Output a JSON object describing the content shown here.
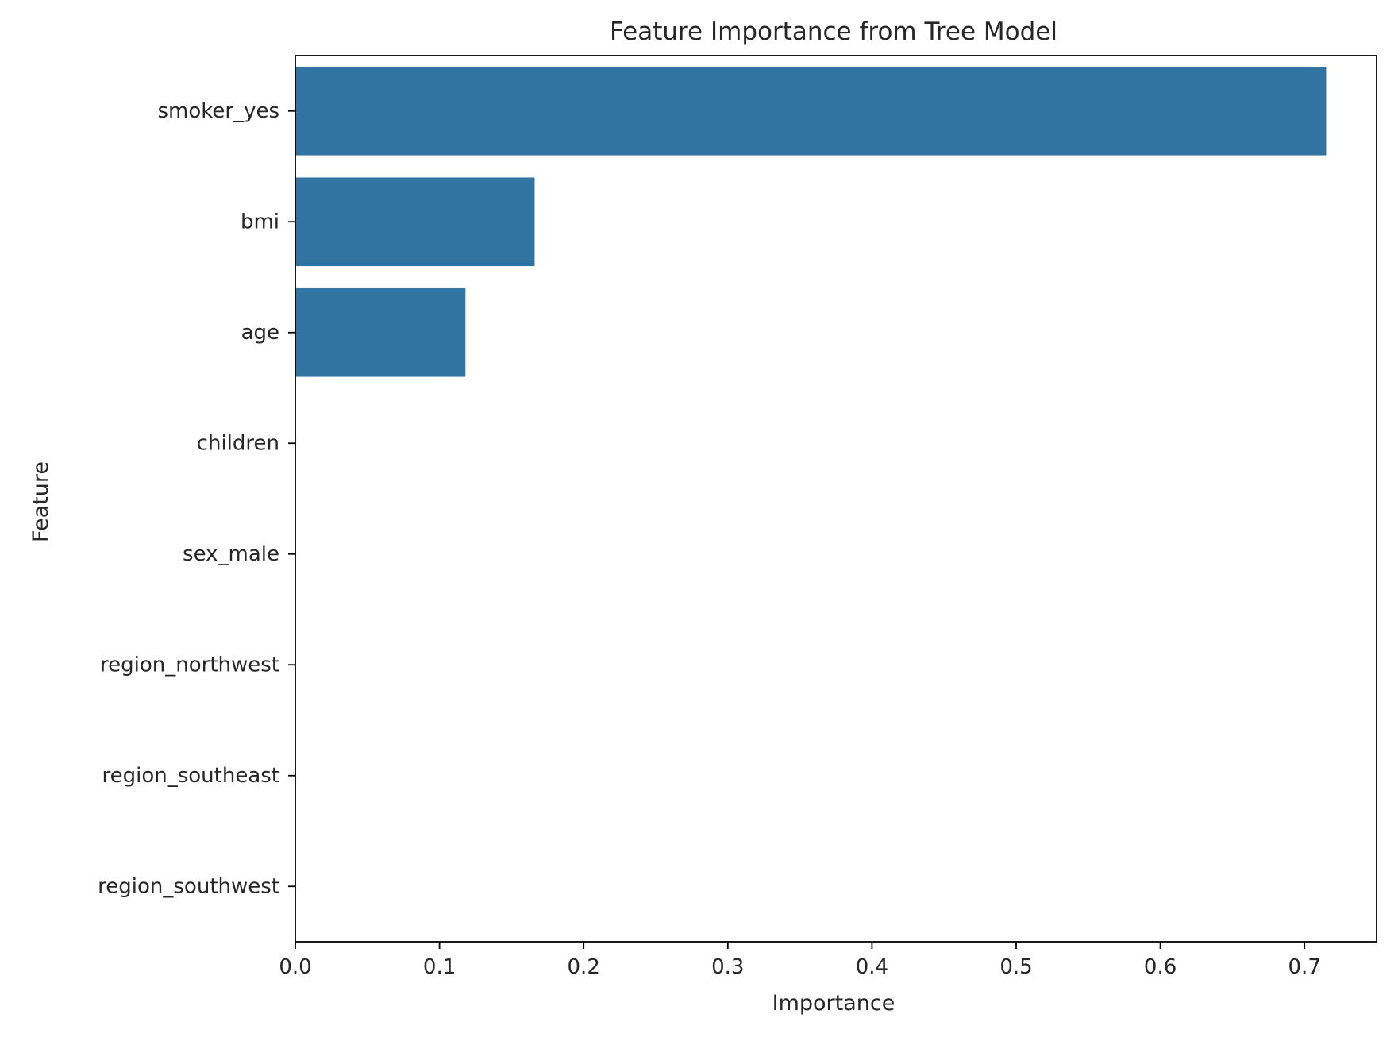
{
  "chart_data": {
    "type": "bar",
    "orientation": "horizontal",
    "title": "Feature Importance from Tree Model",
    "xlabel": "Importance",
    "ylabel": "Feature",
    "categories": [
      "smoker_yes",
      "bmi",
      "age",
      "children",
      "sex_male",
      "region_northwest",
      "region_southeast",
      "region_southwest"
    ],
    "values": [
      0.715,
      0.166,
      0.118,
      0.0,
      0.0,
      0.0,
      0.0,
      0.0
    ],
    "xlim": [
      0,
      0.75
    ],
    "xticks": [
      0.0,
      0.1,
      0.2,
      0.3,
      0.4,
      0.5,
      0.6,
      0.7
    ],
    "xtick_labels": [
      "0.0",
      "0.1",
      "0.2",
      "0.3",
      "0.4",
      "0.5",
      "0.6",
      "0.7"
    ],
    "bar_color": "#3274a1",
    "grid": false,
    "legend": "none"
  }
}
